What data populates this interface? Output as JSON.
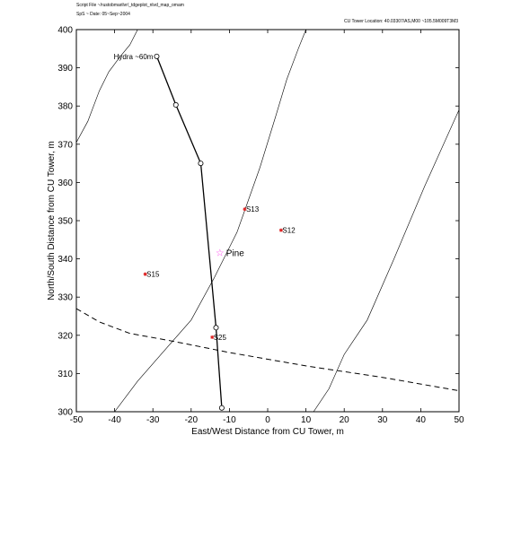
{
  "header": {
    "script_file": "Script File ~/rustobmarilvr/_tdgeplot_nlvd_map_omam",
    "script_date": "SpS ~ Date: 05~Sep~2004",
    "tower_location": "CU Tower Location:  40.03307/AS,M00  ~105.5M009T3M3"
  },
  "chart_data": {
    "type": "line",
    "xlabel": "East/West Distance from CU Tower, m",
    "ylabel": "North/South Distance from CU Tower, m",
    "xlim": [
      -50,
      50
    ],
    "ylim": [
      300,
      400
    ],
    "xticks": [
      -50,
      -40,
      -30,
      -20,
      -10,
      0,
      10,
      20,
      30,
      40,
      50
    ],
    "yticks": [
      300,
      310,
      320,
      330,
      340,
      350,
      360,
      370,
      380,
      390,
      400
    ],
    "contours": [
      [
        [
          -50,
          370.5
        ],
        [
          -47,
          376
        ],
        [
          -44,
          384
        ],
        [
          -41.5,
          389
        ],
        [
          -38.5,
          393
        ],
        [
          -36,
          396
        ],
        [
          -34,
          400
        ]
      ],
      [
        [
          -40,
          300
        ],
        [
          -34,
          308
        ],
        [
          -27,
          316
        ],
        [
          -20,
          324
        ],
        [
          -14,
          335
        ],
        [
          -8,
          347
        ],
        [
          -2,
          364
        ],
        [
          2,
          377
        ],
        [
          5,
          387
        ],
        [
          8,
          395
        ],
        [
          10,
          400
        ]
      ],
      [
        [
          12,
          300
        ],
        [
          16,
          306
        ],
        [
          20,
          315
        ],
        [
          26,
          324
        ],
        [
          33,
          340
        ],
        [
          41,
          359
        ],
        [
          50,
          379
        ]
      ]
    ],
    "dashed_line": [
      [
        -50,
        327
      ],
      [
        -44,
        323.5
      ],
      [
        -36,
        320.5
      ],
      [
        -25,
        318.5
      ],
      [
        -10,
        315.5
      ],
      [
        10,
        312
      ],
      [
        30,
        309
      ],
      [
        50,
        305.5
      ]
    ],
    "tower_line": {
      "label": "Hydra ~60m",
      "points": [
        [
          -29,
          393
        ],
        [
          -24,
          380.3
        ],
        [
          -17.5,
          365
        ],
        [
          -13.5,
          322
        ],
        [
          -12,
          301
        ]
      ]
    },
    "stations": [
      {
        "label": "S13",
        "x": -6,
        "y": 353
      },
      {
        "label": "S12",
        "x": 3.5,
        "y": 347.5
      },
      {
        "label": "S15",
        "x": -32,
        "y": 336
      },
      {
        "label": "S25",
        "x": -14.5,
        "y": 319.5
      }
    ],
    "pine": {
      "label": "Pine",
      "x": -12.5,
      "y": 341.5
    },
    "colors": {
      "station_marker": "#dd2222",
      "pine_marker": "#ff44ee",
      "line": "#000000"
    }
  }
}
